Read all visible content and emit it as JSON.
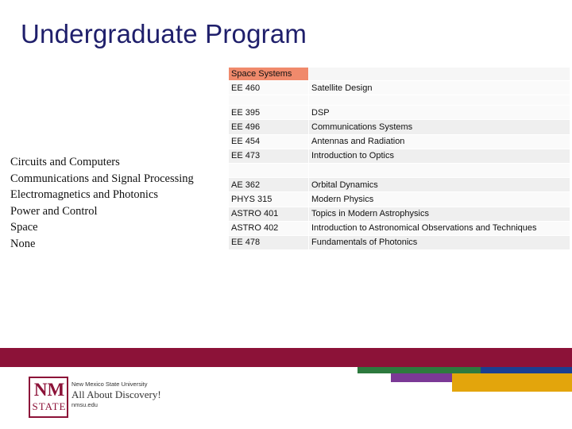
{
  "slide": {
    "title": "Undergraduate Program"
  },
  "tracks": [
    "Circuits and Computers",
    "Communications and Signal Processing",
    "Electromagnetics and Photonics",
    "Power and Control",
    "Space",
    "None"
  ],
  "course_table": {
    "header": "Space Systems",
    "rows": [
      {
        "code": "EE 460",
        "name": "Satellite Design"
      },
      {
        "code": "",
        "name": ""
      },
      {
        "code": "EE 395",
        "name": "DSP"
      },
      {
        "code": "EE 496",
        "name": "Communications Systems"
      },
      {
        "code": "EE 454",
        "name": "Antennas and Radiation"
      },
      {
        "code": "EE 473",
        "name": "Introduction to Optics"
      },
      {
        "code": "",
        "name": ""
      },
      {
        "code": "AE 362",
        "name": "Orbital Dynamics"
      },
      {
        "code": "PHYS 315",
        "name": "Modern Physics"
      },
      {
        "code": "ASTRO 401",
        "name": "Topics in Modern Astrophysics"
      },
      {
        "code": "ASTRO 402",
        "name": "Introduction to Astronomical Observations and Techniques"
      },
      {
        "code": "EE 478",
        "name": "Fundamentals of Photonics"
      }
    ]
  },
  "logo": {
    "mark_top": "NM",
    "mark_bottom": "STATE",
    "university": "New Mexico State University",
    "tagline": "All About Discovery!",
    "url": "nmsu.edu"
  },
  "colors": {
    "title": "#1f1f6b",
    "header_cell": "#f08a6c",
    "band": "#8c1238",
    "stripe_green": "#2d7a3e",
    "stripe_blue": "#1a3f91",
    "stripe_purple": "#7b3996",
    "stripe_gold": "#e3a50c"
  }
}
